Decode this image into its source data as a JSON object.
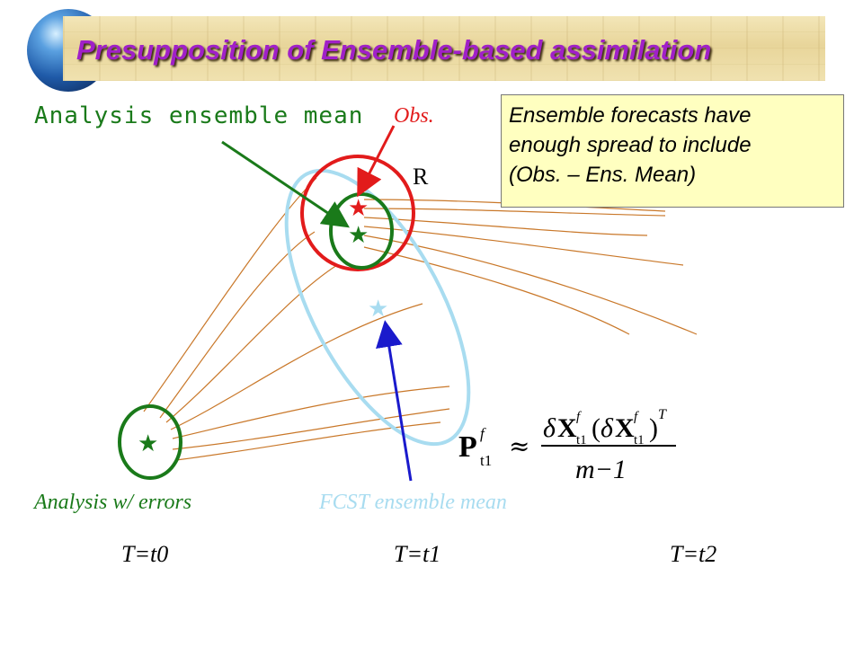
{
  "title": "Presupposition of Ensemble-based assimilation",
  "labels": {
    "analysis_ensemble_mean": "Analysis ensemble mean",
    "obs": "Obs.",
    "r": "R",
    "analysis_with_errors": "Analysis w/ errors",
    "fcst_ensemble_mean": "FCST ensemble mean"
  },
  "note_lines": [
    "Ensemble forecasts have",
    "enough spread to include",
    "(Obs. – Ens. Mean)"
  ],
  "times": [
    "T=t0",
    "T=t1",
    "T=t2"
  ],
  "formula": {
    "lhs": "P",
    "lhs_sup": "f",
    "lhs_sub": "t1",
    "approx": "≈",
    "numerator": "δX(δX)",
    "denominator": "m−1"
  },
  "colors": {
    "title": "#a020c8",
    "analysis": "#1a7a1a",
    "obs": "#e21b1b",
    "forecast_spread": "#a8dcf0",
    "arrow_fcst": "#1a1acc",
    "trajectories": "#c9782a"
  }
}
